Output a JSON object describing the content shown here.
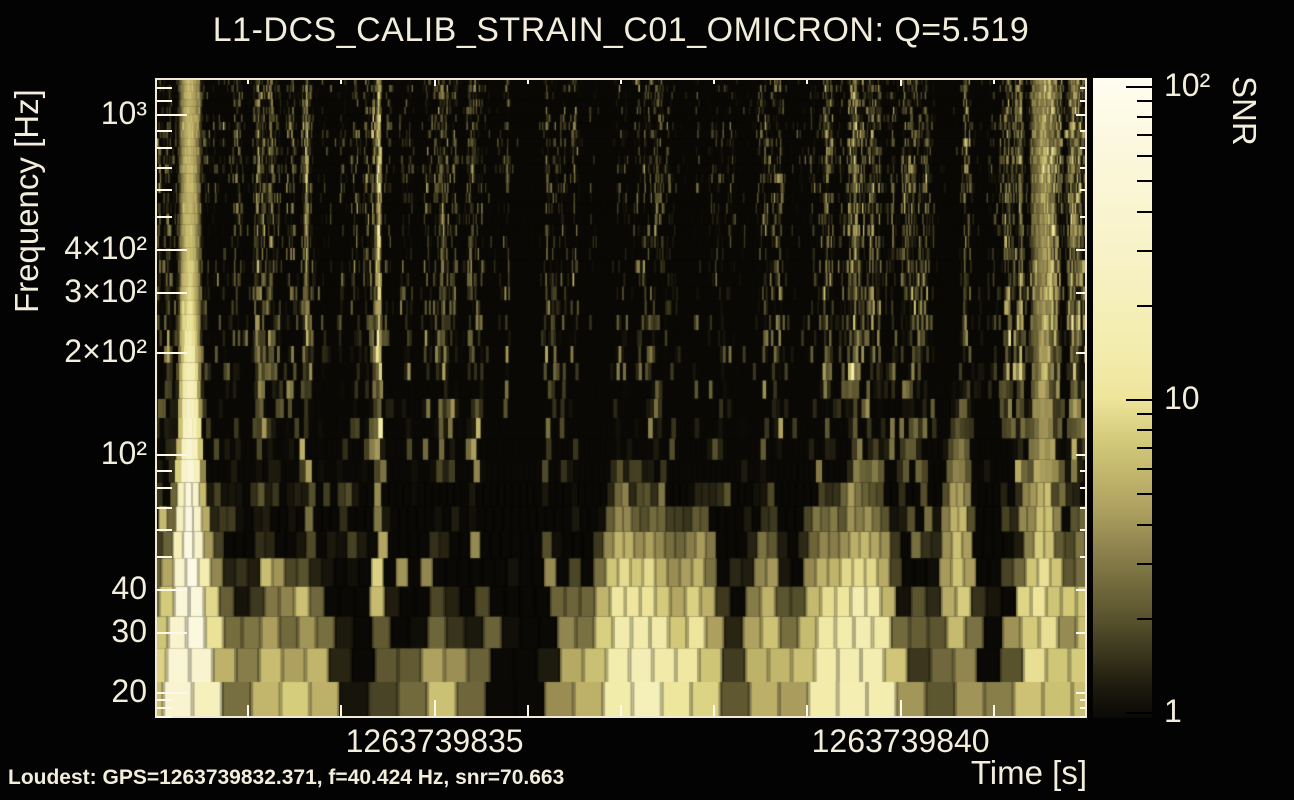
{
  "title": "L1-DCS_CALIB_STRAIN_C01_OMICRON: Q=5.519",
  "annotation": {
    "loudest": "Loudest: GPS=1263739832.371, f=40.424 Hz, snr=70.663"
  },
  "axes": {
    "x_label": "Time [s]",
    "y_label": "Frequency [Hz]",
    "colorbar_label": "SNR",
    "x_ticks_labeled": [
      {
        "gps": 1263739835,
        "label": "1263739835"
      },
      {
        "gps": 1263739840,
        "label": "1263739840"
      }
    ],
    "x_ticks_minor_gps": [
      1263739833,
      1263739834,
      1263739836,
      1263739837,
      1263739838,
      1263739839,
      1263739841
    ],
    "y_ticks_labeled": [
      {
        "hz": 1000,
        "label": "10³"
      },
      {
        "hz": 400,
        "label": "4×10²"
      },
      {
        "hz": 300,
        "label": "3×10²"
      },
      {
        "hz": 200,
        "label": "2×10²"
      },
      {
        "hz": 100,
        "label": "10²"
      },
      {
        "hz": 40,
        "label": "40"
      },
      {
        "hz": 30,
        "label": "30"
      },
      {
        "hz": 20,
        "label": "20"
      }
    ],
    "y_ticks_minor_hz": [
      17,
      18,
      19,
      50,
      60,
      70,
      80,
      90,
      500,
      600,
      700,
      800,
      900,
      1100,
      1200
    ],
    "colorbar_ticks_labeled": [
      {
        "snr": 100,
        "label": "10²"
      },
      {
        "snr": 10,
        "label": "10"
      },
      {
        "snr": 1,
        "label": "1"
      }
    ],
    "colorbar_ticks_minor": [
      2,
      3,
      4,
      5,
      6,
      7,
      8,
      9,
      20,
      30,
      40,
      50,
      60,
      70,
      80,
      90
    ]
  },
  "colors": {
    "background": "#030303",
    "text": "#f3eedb",
    "frame": "#efe9d5",
    "axis_tick": "#fdf8e8",
    "colorbar_tick": "#000000"
  },
  "chart_data": {
    "type": "heatmap",
    "subtype": "omicron-q-transform-spectrogram",
    "channel": "L1-DCS_CALIB_STRAIN_C01",
    "q": 5.519,
    "x_axis": {
      "label": "Time [s]",
      "range_gps": [
        1263739832.0,
        1263739842.0
      ],
      "scale": "linear",
      "tick_step_s": 1
    },
    "y_axis": {
      "label": "Frequency [Hz]",
      "range_hz": [
        16.8,
        1285
      ],
      "scale": "log"
    },
    "z_axis": {
      "label": "SNR",
      "range": [
        1,
        100
      ],
      "scale": "log"
    },
    "loudest": {
      "gps": 1263739832.371,
      "frequency_hz": 40.424,
      "snr": 70.663
    },
    "features": [
      {
        "gps": 1263739832.371,
        "f_hz": 40.424,
        "snr": 70,
        "t_sigma_s": 0.09,
        "f_sigma_oct": 1.15,
        "spine_snr": 5
      },
      {
        "gps": 1263739832.12,
        "f_hz": 21,
        "snr": 9,
        "t_sigma_s": 0.12,
        "f_sigma_oct": 0.7
      },
      {
        "gps": 1263739832.62,
        "f_hz": 25,
        "snr": 6.5,
        "t_sigma_s": 0.1,
        "f_sigma_oct": 0.7
      },
      {
        "gps": 1263739833.25,
        "f_hz": 20,
        "snr": 5,
        "t_sigma_s": 0.14,
        "f_sigma_oct": 0.6
      },
      {
        "gps": 1263739833.7,
        "f_hz": 21,
        "snr": 5,
        "t_sigma_s": 0.12,
        "f_sigma_oct": 0.6
      },
      {
        "gps": 1263739835.05,
        "f_hz": 18.5,
        "snr": 4.5,
        "t_sigma_s": 0.16,
        "f_sigma_oct": 0.5
      },
      {
        "gps": 1263739836.45,
        "f_hz": 22,
        "snr": 4,
        "t_sigma_s": 0.1,
        "f_sigma_oct": 0.5
      },
      {
        "gps": 1263739837.0,
        "f_hz": 26,
        "snr": 13,
        "t_sigma_s": 0.16,
        "f_sigma_oct": 0.8
      },
      {
        "gps": 1263739837.35,
        "f_hz": 24,
        "snr": 11,
        "t_sigma_s": 0.13,
        "f_sigma_oct": 0.75
      },
      {
        "gps": 1263739837.8,
        "f_hz": 25,
        "snr": 10,
        "t_sigma_s": 0.14,
        "f_sigma_oct": 0.75
      },
      {
        "gps": 1263739838.55,
        "f_hz": 28,
        "snr": 6,
        "t_sigma_s": 0.12,
        "f_sigma_oct": 0.65
      },
      {
        "gps": 1263739839.15,
        "f_hz": 25,
        "snr": 9,
        "t_sigma_s": 0.14,
        "f_sigma_oct": 0.7
      },
      {
        "gps": 1263739839.5,
        "f_hz": 25,
        "snr": 12,
        "t_sigma_s": 0.16,
        "f_sigma_oct": 0.75
      },
      {
        "gps": 1263739839.75,
        "f_hz": 27,
        "snr": 8,
        "t_sigma_s": 0.12,
        "f_sigma_oct": 0.7
      },
      {
        "gps": 1263739840.6,
        "f_hz": 45,
        "snr": 6.5,
        "t_sigma_s": 0.12,
        "f_sigma_oct": 0.85
      },
      {
        "gps": 1263739841.5,
        "f_hz": 28,
        "snr": 8,
        "t_sigma_s": 0.12,
        "f_sigma_oct": 0.9,
        "spine_snr": 2.2
      },
      {
        "gps": 1263739841.95,
        "f_hz": 22,
        "snr": 6,
        "t_sigma_s": 0.1,
        "f_sigma_oct": 0.6
      }
    ],
    "colormap": [
      {
        "t": 0.0,
        "rgb": [
          10,
          9,
          5
        ]
      },
      {
        "t": 0.05,
        "rgb": [
          30,
          27,
          14
        ]
      },
      {
        "t": 0.15,
        "rgb": [
          86,
          80,
          44
        ]
      },
      {
        "t": 0.25,
        "rgb": [
          135,
          125,
          74
        ]
      },
      {
        "t": 0.33,
        "rgb": [
          176,
          162,
          96
        ]
      },
      {
        "t": 0.43,
        "rgb": [
          210,
          200,
          120
        ]
      },
      {
        "t": 0.5,
        "rgb": [
          238,
          229,
          155
        ]
      },
      {
        "t": 0.57,
        "rgb": [
          242,
          236,
          172
        ]
      },
      {
        "t": 0.72,
        "rgb": [
          248,
          242,
          198
        ]
      },
      {
        "t": 0.88,
        "rgb": [
          251,
          247,
          220
        ]
      },
      {
        "t": 1.0,
        "rgb": [
          255,
          253,
          240
        ]
      }
    ],
    "texture_seed": 11
  }
}
